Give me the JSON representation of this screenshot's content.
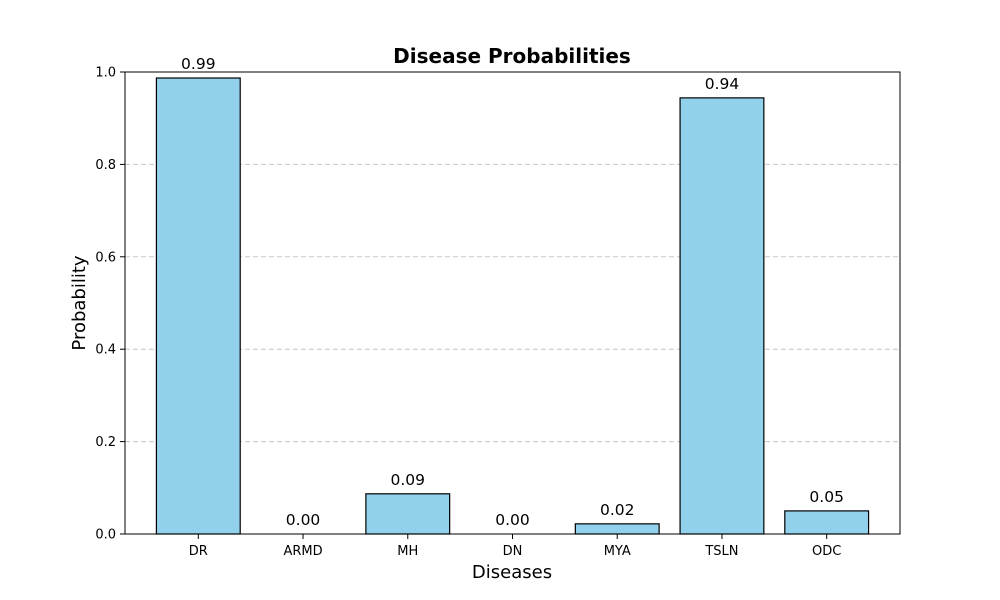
{
  "chart_data": {
    "type": "bar",
    "title": "Disease Probabilities",
    "xlabel": "Diseases",
    "ylabel": "Probability",
    "categories": [
      "DR",
      "ARMD",
      "MH",
      "DN",
      "MYA",
      "TSLN",
      "ODC"
    ],
    "values": [
      0.987,
      0.0,
      0.087,
      0.0,
      0.022,
      0.944,
      0.05
    ],
    "value_labels": [
      "0.99",
      "0.00",
      "0.09",
      "0.00",
      "0.02",
      "0.94",
      "0.05"
    ],
    "ylim": [
      0,
      1.0
    ],
    "yticks": [
      0.0,
      0.2,
      0.4,
      0.6,
      0.8,
      1.0
    ],
    "ytick_labels": [
      "0.0",
      "0.2",
      "0.4",
      "0.6",
      "0.8",
      "1.0"
    ],
    "grid": "y-dashed",
    "bar_color": "#92d1ec",
    "edge_color": "#000000"
  }
}
